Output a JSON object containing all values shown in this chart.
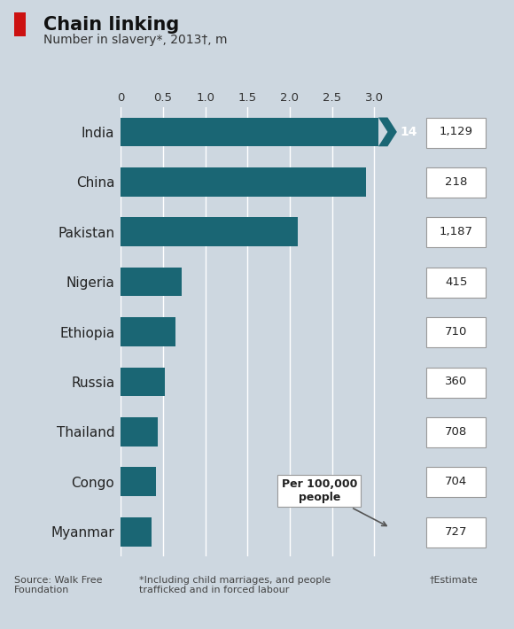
{
  "title": "Chain linking",
  "subtitle": "Number in slavery*, 2013†, m",
  "background_color": "#cdd7e0",
  "bar_color": "#1a6674",
  "countries": [
    "India",
    "China",
    "Pakistan",
    "Nigeria",
    "Ethiopia",
    "Russia",
    "Thailand",
    "Congo",
    "Myanmar"
  ],
  "values": [
    3.18,
    2.9,
    2.1,
    0.72,
    0.65,
    0.52,
    0.44,
    0.42,
    0.36
  ],
  "india_real_value": 14,
  "per_100k": [
    "1,129",
    "218",
    "1,187",
    "415",
    "710",
    "360",
    "708",
    "704",
    "727"
  ],
  "xlim": [
    0,
    3.5
  ],
  "xticks": [
    0,
    0.5,
    1.0,
    1.5,
    2.0,
    2.5,
    3.0
  ],
  "xtick_labels": [
    "0",
    "0.5",
    "1.0",
    "1.5",
    "2.0",
    "2.5",
    "3.0"
  ],
  "source_text": "Source: Walk Free\nFoundation",
  "footnote1": "*Including child marriages, and people\ntrafficked and in forced labour",
  "footnote2": "†Estimate",
  "arrow_label": "Per 100,000\npeople"
}
